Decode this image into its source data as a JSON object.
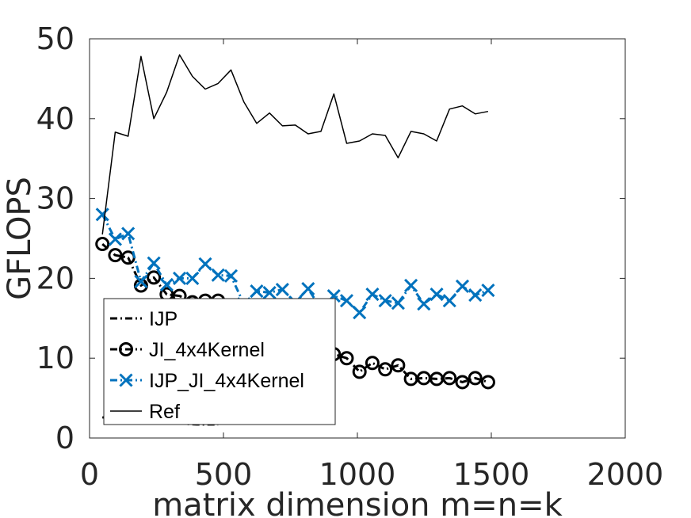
{
  "chart_data": {
    "type": "line",
    "title": "",
    "xlabel": "matrix dimension m=n=k",
    "ylabel": "GFLOPS",
    "xlim": [
      0,
      2000
    ],
    "ylim": [
      0,
      50
    ],
    "xticks": [
      "0",
      "500",
      "1000",
      "1500",
      "2000"
    ],
    "yticks": [
      "0",
      "10",
      "20",
      "30",
      "40",
      "50"
    ],
    "grid": false,
    "legend_position": "lower-left",
    "series": [
      {
        "name": "IJP",
        "color": "#000000",
        "style": "dash-dot",
        "marker": "none",
        "x": [
          48,
          100,
          150,
          200,
          250,
          300,
          350,
          400,
          450,
          480
        ],
        "y": [
          2.6,
          2.3,
          2.1,
          2.0,
          1.9,
          1.8,
          1.8,
          1.7,
          1.7,
          1.7
        ]
      },
      {
        "name": "JI_4x4Kernel",
        "color": "#000000",
        "style": "dash-dot",
        "marker": "circle",
        "x": [
          48,
          96,
          144,
          192,
          240,
          288,
          336,
          384,
          432,
          480,
          912,
          960,
          1008,
          1056,
          1104,
          1152,
          1200,
          1248,
          1296,
          1344,
          1392,
          1440,
          1488
        ],
        "y": [
          24.3,
          22.9,
          22.6,
          19.1,
          20.1,
          18.0,
          17.8,
          17.0,
          17.2,
          17.2,
          10.5,
          10.0,
          8.3,
          9.4,
          8.6,
          9.1,
          7.4,
          7.5,
          7.4,
          7.5,
          7.0,
          7.5,
          7.0
        ]
      },
      {
        "name": "IJP_JI_4x4Kernel",
        "color": "#0072BD",
        "style": "dash-dot",
        "marker": "x",
        "x": [
          48,
          96,
          144,
          192,
          240,
          288,
          336,
          384,
          432,
          480,
          528,
          576,
          624,
          672,
          720,
          768,
          816,
          864,
          912,
          960,
          1008,
          1056,
          1104,
          1152,
          1200,
          1248,
          1296,
          1344,
          1392,
          1440,
          1488
        ],
        "y": [
          28.0,
          24.9,
          25.6,
          19.6,
          21.9,
          19.2,
          20.0,
          20.0,
          21.8,
          20.4,
          20.3,
          16.8,
          18.4,
          18.2,
          18.6,
          17.0,
          18.7,
          16.2,
          17.8,
          17.2,
          15.7,
          18.0,
          17.2,
          16.9,
          19.1,
          16.8,
          18.0,
          17.2,
          19.0,
          17.9,
          18.5
        ]
      },
      {
        "name": "Ref",
        "color": "#000000",
        "style": "solid",
        "marker": "none",
        "x": [
          48,
          96,
          144,
          192,
          240,
          288,
          336,
          384,
          432,
          480,
          528,
          576,
          624,
          672,
          720,
          768,
          816,
          864,
          912,
          960,
          1008,
          1056,
          1104,
          1152,
          1200,
          1248,
          1296,
          1344,
          1392,
          1440,
          1488
        ],
        "y": [
          25.5,
          38.3,
          37.8,
          47.8,
          40.0,
          43.3,
          48.0,
          45.3,
          43.7,
          44.4,
          46.1,
          42.1,
          39.4,
          40.7,
          39.1,
          39.2,
          38.1,
          38.4,
          43.1,
          36.9,
          37.2,
          38.1,
          37.9,
          35.1,
          38.4,
          38.1,
          37.2,
          41.2,
          41.6,
          40.6,
          40.9
        ]
      }
    ]
  }
}
